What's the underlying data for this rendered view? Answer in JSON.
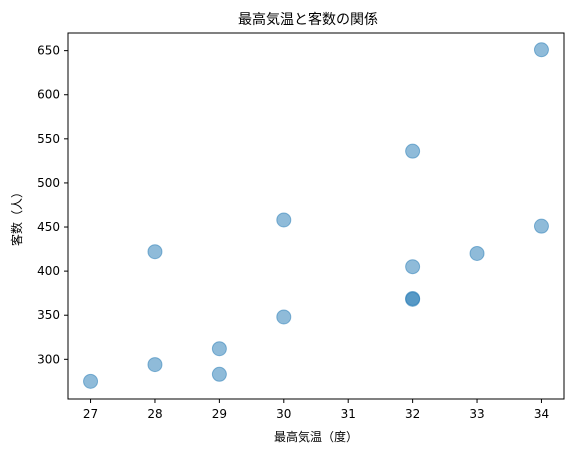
{
  "chart_data": {
    "type": "scatter",
    "title": "最高気温と客数の関係",
    "xlabel": "最高気温（度）",
    "ylabel": "客数（人）",
    "xlim": [
      26.65,
      34.35
    ],
    "ylim": [
      255,
      670
    ],
    "xticks": [
      27,
      28,
      29,
      30,
      31,
      32,
      33,
      34
    ],
    "yticks": [
      300,
      350,
      400,
      450,
      500,
      550,
      600,
      650
    ],
    "grid": false,
    "marker_color": "#1f77b4",
    "marker_alpha": 0.5,
    "points": [
      {
        "x": 27,
        "y": 275
      },
      {
        "x": 28,
        "y": 294
      },
      {
        "x": 28,
        "y": 422
      },
      {
        "x": 29,
        "y": 283
      },
      {
        "x": 29,
        "y": 312
      },
      {
        "x": 30,
        "y": 348
      },
      {
        "x": 30,
        "y": 458
      },
      {
        "x": 32,
        "y": 369
      },
      {
        "x": 32,
        "y": 368
      },
      {
        "x": 32,
        "y": 405
      },
      {
        "x": 32,
        "y": 536
      },
      {
        "x": 33,
        "y": 420
      },
      {
        "x": 34,
        "y": 451
      },
      {
        "x": 34,
        "y": 651
      }
    ]
  }
}
